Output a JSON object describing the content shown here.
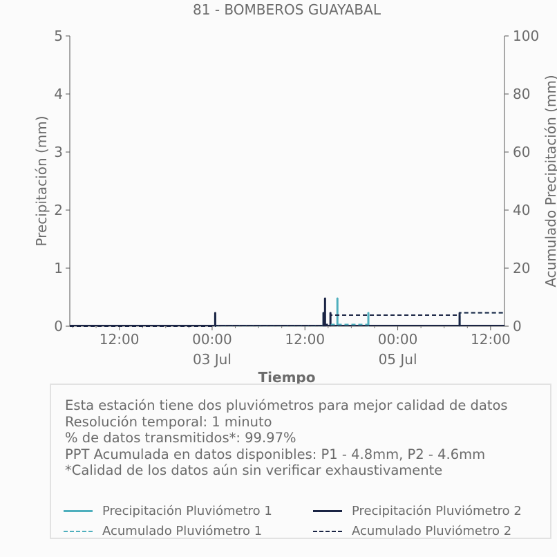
{
  "chart_data": {
    "type": "bar",
    "title": "81 - BOMBEROS GUAYABAL",
    "xlabel": "Tiempo",
    "ylabel": "Precipitación (mm)",
    "y2label": "Acumulado Precipitación (mm)",
    "ylim": [
      0,
      5
    ],
    "y2lim": [
      0,
      100
    ],
    "yticks": [
      "0",
      "1",
      "2",
      "3",
      "4",
      "5"
    ],
    "y2ticks": [
      "0",
      "20",
      "40",
      "60",
      "80",
      "100"
    ],
    "xticks": [
      {
        "t": 12,
        "label": "12:00",
        "sub": ""
      },
      {
        "t": 24,
        "label": "00:00",
        "sub": "03 Jul"
      },
      {
        "t": 36,
        "label": "12:00",
        "sub": ""
      },
      {
        "t": 48,
        "label": "00:00",
        "sub": "05 Jul"
      },
      {
        "t": 60,
        "label": "12:00",
        "sub": ""
      }
    ],
    "xlim_hours": [
      5.6,
      61.8
    ],
    "grid": false,
    "series": [
      {
        "name": "Precipitación Pluviómetro 1",
        "kind": "bar",
        "color": "#4eafbd",
        "x": [
          24.4,
          38.4,
          40.2,
          44.2,
          56.0
        ],
        "values": [
          0.2,
          0.25,
          0.5,
          0.25,
          0.2
        ]
      },
      {
        "name": "Precipitación Pluviómetro 2",
        "kind": "bar",
        "color": "#1a2444",
        "x": [
          24.4,
          38.4,
          38.6,
          39.3,
          56.0
        ],
        "values": [
          0.25,
          0.25,
          0.5,
          0.25,
          0.25
        ]
      },
      {
        "name": "Acumulado Pluviómetro 1",
        "kind": "step",
        "color": "#4eafbd",
        "x": [
          5.6,
          24.4,
          38.4,
          44.2,
          56.0,
          61.8
        ],
        "values": [
          0,
          0.2,
          0.6,
          3.8,
          4.6,
          4.8
        ]
      },
      {
        "name": "Acumulado Pluviómetro 2",
        "kind": "step",
        "color": "#1a2444",
        "x": [
          5.6,
          24.4,
          38.4,
          39.3,
          56.0,
          61.8
        ],
        "values": [
          0,
          0.25,
          0.6,
          3.8,
          4.6,
          4.6
        ]
      }
    ]
  },
  "info": {
    "line1": "Esta estación tiene dos pluviómetros para mejor calidad de datos",
    "line2": "Resolución temporal: 1 minuto",
    "line3": "% de datos transmitidos*: 99.97%",
    "line4": "PPT Acumulada en datos disponibles: P1 - 4.8mm, P2 - 4.6mm",
    "line5": "*Calidad de los datos aún sin verificar exhaustivamente"
  },
  "legend": {
    "p1": "Precipitación Pluviómetro 1",
    "p2": "Precipitación Pluviómetro 2",
    "a1": "Acumulado Pluviómetro 1",
    "a2": "Acumulado Pluviómetro 2",
    "color1": "#4eafbd",
    "color2": "#1a2444"
  }
}
